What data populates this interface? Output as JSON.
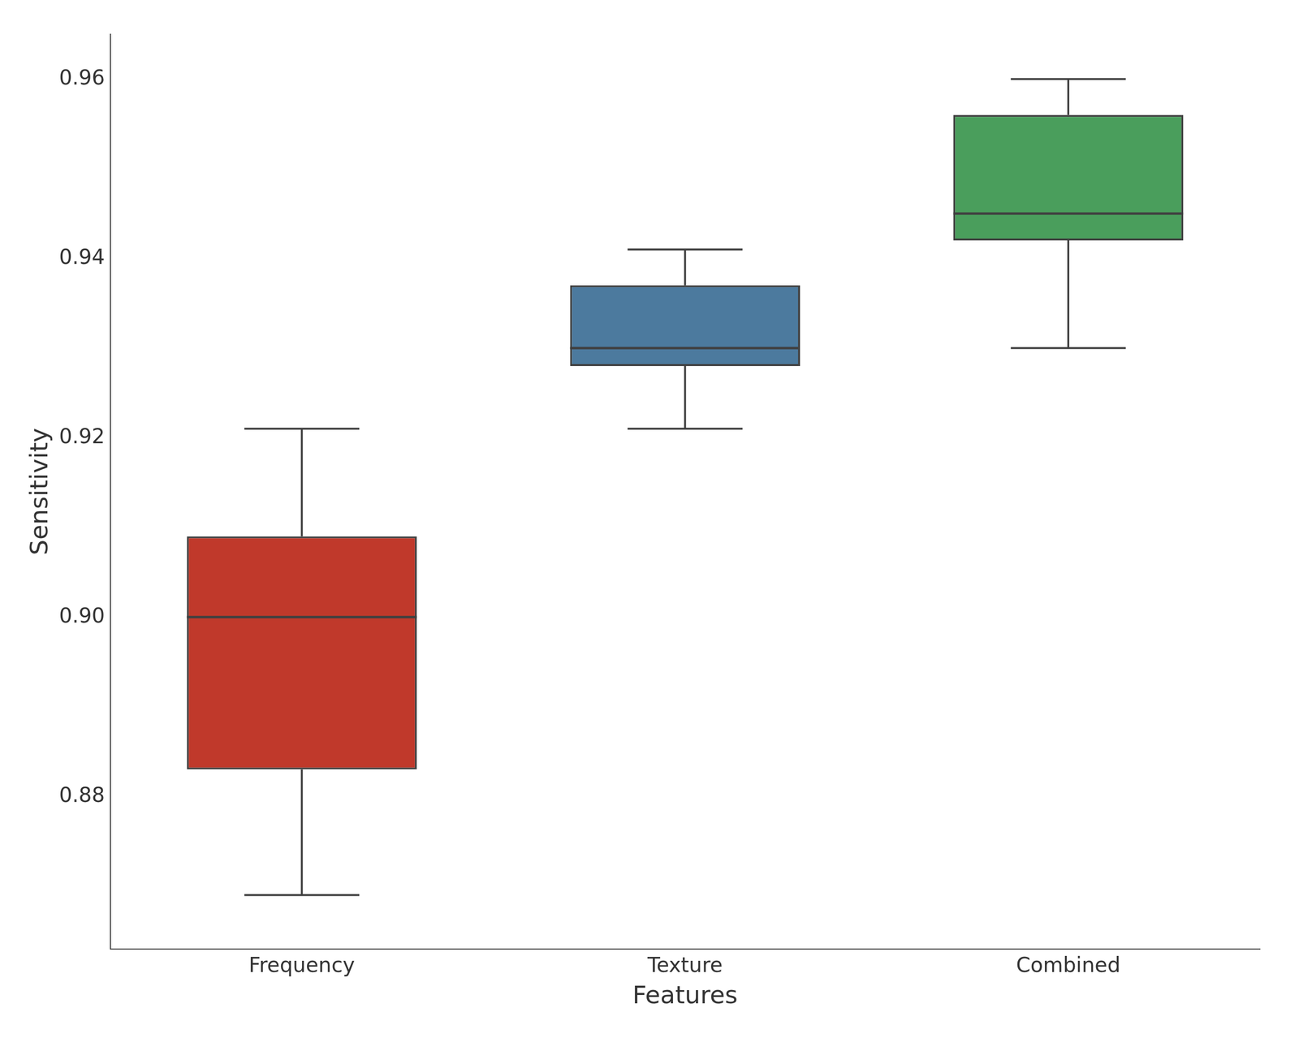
{
  "chart_data": {
    "type": "box",
    "xlabel": "Features",
    "ylabel": "Sensitivity",
    "categories": [
      "Frequency",
      "Texture",
      "Combined"
    ],
    "whislo": [
      0.869,
      0.921,
      0.93
    ],
    "q1": [
      0.883,
      0.928,
      0.942
    ],
    "med": [
      0.9,
      0.93,
      0.945
    ],
    "q3": [
      0.909,
      0.937,
      0.956
    ],
    "whishi": [
      0.921,
      0.941,
      0.96
    ],
    "colors": [
      "#c0392b",
      "#4c7a9e",
      "#4a9e5c"
    ],
    "ylim": [
      0.863,
      0.965
    ],
    "yticks": [
      0.88,
      {
        "value": 0.9,
        "label": "0.90"
      },
      0.92,
      0.94,
      0.96
    ],
    "grid": false
  }
}
